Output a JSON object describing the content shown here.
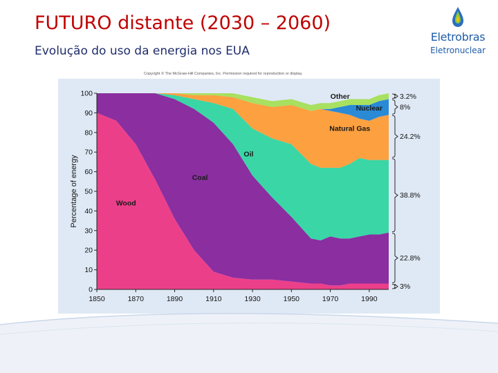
{
  "slide": {
    "title": "FUTURO distante (2030 – 2060)",
    "subtitle": "Evolução do uso da energia nos EUA",
    "copyright": "Copyright © The McGraw-Hill Companies, Inc. Permission required for reproduction or display.",
    "logo": {
      "name": "Eletrobras",
      "sub": "Eletronuclear",
      "icon": "water-drop-logo-icon",
      "color": "#1f5ca8"
    }
  },
  "chart_data": {
    "type": "area",
    "stacked": true,
    "ylabel": "Percentage of energy",
    "xlabel": "",
    "xlim": [
      1850,
      2000
    ],
    "ylim": [
      0,
      100
    ],
    "xticks": [
      "1850",
      "1870",
      "1890",
      "1910",
      "1930",
      "1950",
      "1970",
      "1990"
    ],
    "yticks": [
      "0",
      "10",
      "20",
      "30",
      "40",
      "50",
      "60",
      "70",
      "80",
      "90",
      "100"
    ],
    "x": [
      1850,
      1860,
      1870,
      1880,
      1890,
      1900,
      1910,
      1920,
      1930,
      1940,
      1950,
      1960,
      1965,
      1970,
      1975,
      1980,
      1985,
      1990,
      1995,
      2000
    ],
    "series": [
      {
        "name": "Wood",
        "color": "#ec3f8a",
        "values": [
          90,
          86,
          74,
          56,
          36,
          20,
          9,
          6,
          5,
          5,
          4,
          3,
          3,
          2,
          2,
          3,
          3,
          3,
          3,
          3
        ]
      },
      {
        "name": "Coal",
        "color": "#8a2ea0",
        "values": [
          10,
          14,
          26,
          44,
          61,
          72,
          76,
          68,
          53,
          42,
          33,
          23,
          22,
          25,
          24,
          23,
          24,
          25,
          25,
          26
        ]
      },
      {
        "name": "Oil",
        "color": "#3ad6a6",
        "values": [
          0,
          0,
          0,
          0,
          2,
          5,
          10,
          18,
          24,
          30,
          37,
          38,
          37,
          35,
          36,
          38,
          40,
          38,
          38,
          37
        ]
      },
      {
        "name": "Natural Gas",
        "color": "#fca040",
        "values": [
          0,
          0,
          0,
          0,
          1,
          2,
          4,
          6,
          13,
          16,
          20,
          27,
          30,
          29,
          28,
          25,
          20,
          20,
          22,
          23
        ]
      },
      {
        "name": "Nuclear",
        "color": "#2a8ad6",
        "values": [
          0,
          0,
          0,
          0,
          0,
          0,
          0,
          0,
          0,
          0,
          0,
          0,
          0,
          1,
          3,
          5,
          7,
          8,
          8,
          8
        ]
      },
      {
        "name": "Other",
        "color": "#a8e060",
        "values": [
          0,
          0,
          0,
          0,
          0,
          1,
          1,
          2,
          3,
          3,
          3,
          3,
          3,
          3,
          3,
          3,
          3,
          3,
          3,
          3
        ]
      }
    ],
    "area_labels": [
      {
        "text": "Wood",
        "x": 1865,
        "y": 44
      },
      {
        "text": "Coal",
        "x": 1903,
        "y": 57
      },
      {
        "text": "Oil",
        "x": 1928,
        "y": 69
      },
      {
        "text": "Natural Gas",
        "x": 1980,
        "y": 82
      },
      {
        "text": "Nuclear",
        "x": 1990,
        "y": 92.5
      },
      {
        "text": "Other",
        "x": 1975,
        "y": 98.5
      }
    ],
    "share_labels": [
      {
        "text": "3.2%",
        "from": 97,
        "to": 100
      },
      {
        "text": "8%",
        "from": 89,
        "to": 97
      },
      {
        "text": "24.2%",
        "from": 67,
        "to": 89
      },
      {
        "text": "38.8%",
        "from": 29,
        "to": 67
      },
      {
        "text": "22.8%",
        "from": 3,
        "to": 29
      },
      {
        "text": "3%",
        "from": 0,
        "to": 3
      }
    ]
  }
}
